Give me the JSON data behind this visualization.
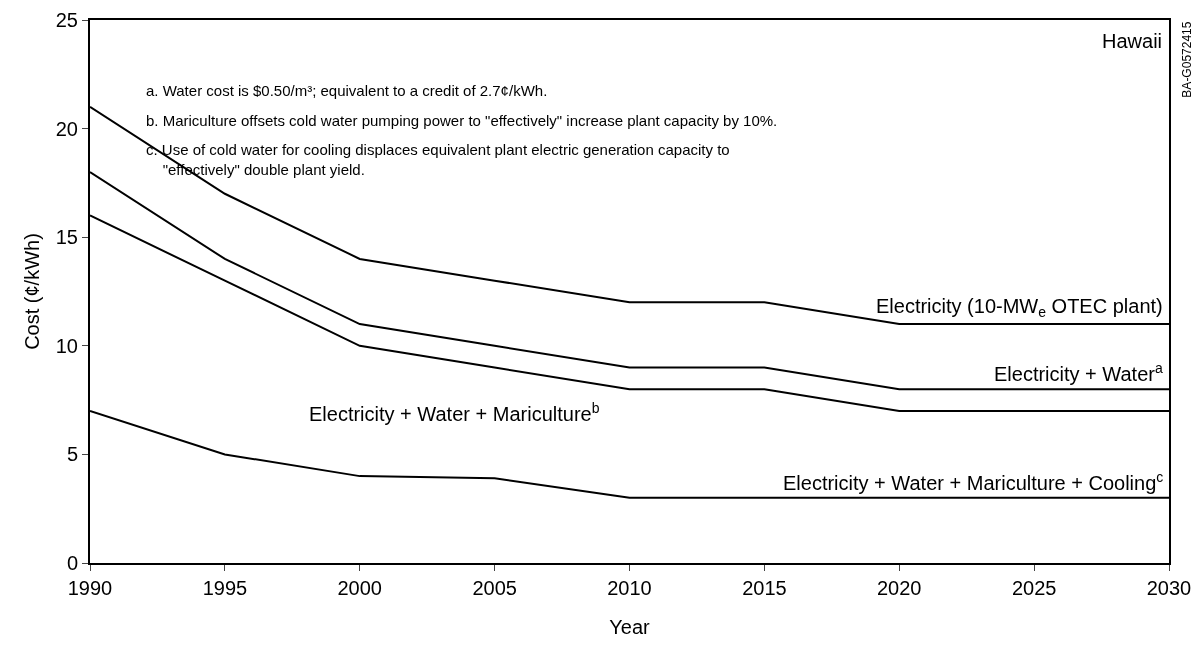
{
  "chart_data": {
    "type": "line",
    "xlabel": "Year",
    "ylabel": "Cost (¢/kWh)",
    "x": [
      1990,
      1995,
      2000,
      2005,
      2010,
      2015,
      2020,
      2025,
      2030
    ],
    "series": [
      {
        "name": "Electricity (10-MW$_{e}$ OTEC plant)",
        "color": "#000000",
        "values": [
          21,
          17,
          14,
          13,
          12,
          12,
          11,
          11,
          11
        ]
      },
      {
        "name": "Electricity + Water$^{a}$",
        "color": "#000000",
        "values": [
          18,
          14,
          11,
          10,
          9,
          9,
          8,
          8,
          8
        ]
      },
      {
        "name": "Electricity + Water + Mariculture$^{b}$",
        "color": "#000000",
        "values": [
          16,
          13,
          10,
          9,
          8,
          8,
          7,
          7,
          7
        ]
      },
      {
        "name": "Electricity + Water + Mariculture + Cooling$^{c}$",
        "color": "#000000",
        "values": [
          7,
          5,
          4,
          3.9,
          3,
          3,
          3,
          3,
          3
        ]
      }
    ],
    "xlim": [
      1990,
      2030
    ],
    "xticks": [
      1990,
      1995,
      2000,
      2005,
      2010,
      2015,
      2020,
      2025,
      2030
    ],
    "ylim": [
      0,
      25
    ],
    "yticks": [
      0,
      5,
      10,
      15,
      20,
      25
    ],
    "grid": false,
    "legend": false,
    "marker": "none",
    "line_style": "solid",
    "annotations": [
      "Hawaii",
      "a. Water cost is $0.50/m³; equivalent to a credit of 2.7¢/kWh.",
      "b. Mariculture offsets cold water pumping power to \"effectively\" increase plant capacity by 10%.",
      "c. Use of cold water for cooling displaces equivalent plant electric generation capacity to \"effectively\" double plant yield.",
      "BA-G0572415"
    ]
  }
}
